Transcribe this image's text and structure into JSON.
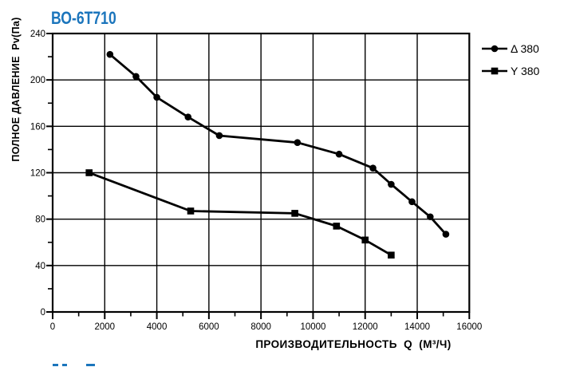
{
  "colors": {
    "accent": "#1b75bc",
    "ink": "#000000",
    "background": "#ffffff"
  },
  "chart_data": {
    "type": "line",
    "title": "ВО-6Т710",
    "xlabel": "ПРОИЗВОДИТЕЛЬНОСТЬ  Q  (М³/Ч)",
    "ylabel": "ПОЛНОЕ ДАВЛЕНИЕ  Pv(Па)",
    "xlim": [
      0,
      16000
    ],
    "ylim": [
      0,
      240
    ],
    "x_ticks": [
      0,
      2000,
      4000,
      6000,
      8000,
      10000,
      12000,
      14000,
      16000
    ],
    "x_minor_step": 1000,
    "y_ticks": [
      0,
      40,
      80,
      120,
      160,
      200,
      240
    ],
    "y_minor_step": 20,
    "grid": "major-both",
    "legend_position": "outside-top-right",
    "series": [
      {
        "name": "Δ 380",
        "marker": "circle",
        "color": "#000000",
        "points": [
          [
            2200,
            222
          ],
          [
            3200,
            203
          ],
          [
            4000,
            185
          ],
          [
            5200,
            168
          ],
          [
            6400,
            152
          ],
          [
            9400,
            146
          ],
          [
            11000,
            136
          ],
          [
            12300,
            124
          ],
          [
            13000,
            110
          ],
          [
            13800,
            95
          ],
          [
            14500,
            82
          ],
          [
            15100,
            67
          ]
        ]
      },
      {
        "name": "Y 380",
        "marker": "square",
        "color": "#000000",
        "points": [
          [
            1400,
            120
          ],
          [
            5300,
            87
          ],
          [
            9300,
            85
          ],
          [
            10900,
            74
          ],
          [
            12000,
            62
          ],
          [
            13000,
            49
          ]
        ]
      }
    ]
  }
}
